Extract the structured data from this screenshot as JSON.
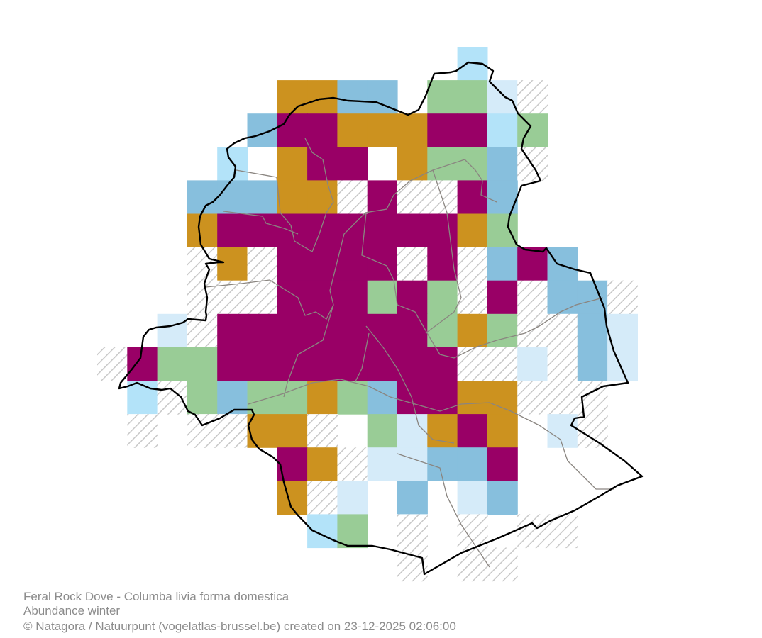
{
  "map": {
    "legend_colors": {
      "M": "#990066",
      "O": "#CC921F",
      "D": "#87BFDD",
      "L": "#B3E3F9",
      "P": "#D5EBF9",
      "G": "#99CC96",
      "H": "hatched"
    },
    "boundary_color": "#000000",
    "commune_line_color": "#8a8580",
    "grid": [
      "............L.....",
      "......OODD.GGPH...",
      ".....DMMOOOMMLG...",
      "....L.OMM.OGGDH...",
      "...DDDOOHMHHMD....",
      "...OMMMMMMMMOG....",
      "...HOHMMMMHMHDMD..",
      "...HHHMMMGMGHMHDDH",
      "..PHMMMMMMMGOGHHDP",
      "HMGGMMMMMMMMHHPHDP",
      ".LHGDGGOGDMMOOHHH.",
      ".H.HHOOH.GPOMO.PH.",
      "......MOHPPDDM....",
      "......OHP.D.PD....",
      ".......LG.H.H.HH..",
      "..........H.HH...."
    ]
  },
  "caption": {
    "title": "Feral Rock Dove - Columba livia forma domestica",
    "subtitle": "Abundance winter",
    "credit": "© Natagora / Natuurpunt (vogelatlas-brussel.be) created on 23-12-2025 02:06:00"
  }
}
